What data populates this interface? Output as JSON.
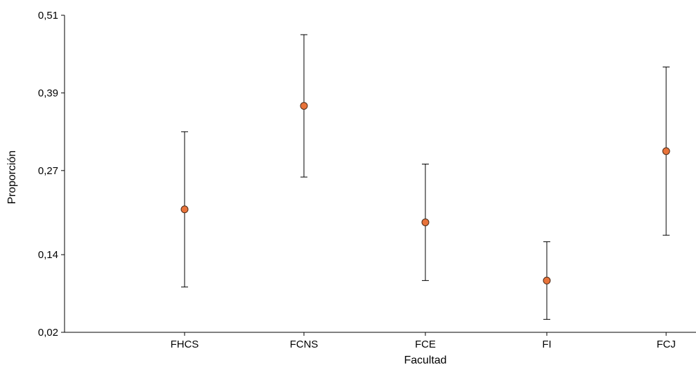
{
  "chart_data": {
    "type": "scatter",
    "title": "",
    "xlabel": "Facultad",
    "ylabel": "Proporción",
    "ylim": [
      0.02,
      0.51
    ],
    "yticks": [
      0.02,
      0.14,
      0.27,
      0.39,
      0.51
    ],
    "ytick_labels": [
      "0,02",
      "0,14",
      "0,27",
      "0,39",
      "0,51"
    ],
    "categories": [
      "FHCS",
      "FCNS",
      "FCE",
      "FI",
      "FCJ"
    ],
    "series": [
      {
        "values": [
          0.21,
          0.37,
          0.19,
          0.1,
          0.3
        ],
        "lower": [
          0.09,
          0.26,
          0.1,
          0.04,
          0.17
        ],
        "upper": [
          0.33,
          0.48,
          0.28,
          0.16,
          0.43
        ]
      }
    ],
    "grid": false,
    "marker_color": "#E8733A",
    "marker_edge_color": "#4a2a18",
    "errorbar_color": "#000000"
  }
}
